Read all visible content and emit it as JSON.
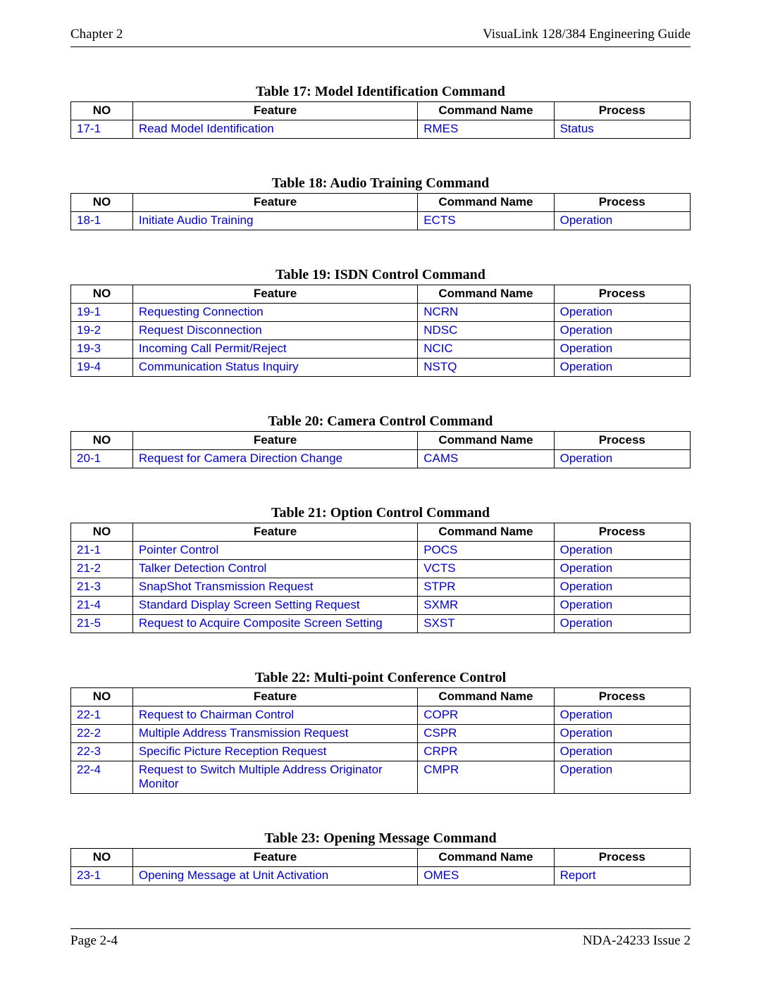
{
  "header": {
    "left": "Chapter 2",
    "right": "VisuaLink 128/384 Engineering Guide"
  },
  "footer": {
    "left": "Page 2-4",
    "right": "NDA-24233 Issue 2"
  },
  "column_headers": {
    "no": "NO",
    "feature": "Feature",
    "command": "Command Name",
    "process": "Process"
  },
  "link_color": "#0000cc",
  "text_color": "#000000",
  "border_color": "#000000",
  "background_color": "#ffffff",
  "tables": [
    {
      "caption": "Table 17:  Model Identification Command",
      "rows": [
        {
          "no": "17-1",
          "feature": "Read Model Identification",
          "command": "RMES",
          "process": "Status"
        }
      ]
    },
    {
      "caption": "Table 18:  Audio Training Command",
      "rows": [
        {
          "no": "18-1",
          "feature": "Initiate Audio Training",
          "command": "ECTS",
          "process": "Operation"
        }
      ]
    },
    {
      "caption": "Table 19:  ISDN Control Command",
      "rows": [
        {
          "no": "19-1",
          "feature": "Requesting Connection",
          "command": "NCRN",
          "process": "Operation"
        },
        {
          "no": "19-2",
          "feature": "Request Disconnection",
          "command": "NDSC",
          "process": "Operation"
        },
        {
          "no": "19-3",
          "feature": "Incoming Call Permit/Reject",
          "command": "NCIC",
          "process": "Operation"
        },
        {
          "no": "19-4",
          "feature": "Communication Status Inquiry",
          "command": "NSTQ",
          "process": "Operation"
        }
      ]
    },
    {
      "caption": "Table 20:  Camera Control Command",
      "rows": [
        {
          "no": "20-1",
          "feature": "Request for Camera Direction Change",
          "command": "CAMS",
          "process": "Operation"
        }
      ]
    },
    {
      "caption": "Table 21:  Option Control Command",
      "rows": [
        {
          "no": "21-1",
          "feature": "Pointer Control",
          "command": "POCS",
          "process": "Operation"
        },
        {
          "no": "21-2",
          "feature": "Talker Detection Control",
          "command": "VCTS",
          "process": "Operation"
        },
        {
          "no": "21-3",
          "feature": "SnapShot Transmission Request",
          "command": "STPR",
          "process": "Operation"
        },
        {
          "no": "21-4",
          "feature": "Standard Display Screen Setting Request",
          "command": "SXMR",
          "process": "Operation"
        },
        {
          "no": "21-5",
          "feature": "Request to Acquire Composite Screen Setting",
          "command": "SXST",
          "process": "Operation"
        }
      ]
    },
    {
      "caption": "Table 22:  Multi-point Conference Control",
      "rows": [
        {
          "no": "22-1",
          "feature": "Request to Chairman Control",
          "command": "COPR",
          "process": "Operation"
        },
        {
          "no": "22-2",
          "feature": "Multiple Address Transmission Request",
          "command": "CSPR",
          "process": "Operation"
        },
        {
          "no": "22-3",
          "feature": "Specific Picture Reception Request",
          "command": "CRPR",
          "process": "Operation"
        },
        {
          "no": "22-4",
          "feature": "Request to Switch Multiple Address Originator Monitor",
          "command": "CMPR",
          "process": "Operation"
        }
      ]
    },
    {
      "caption": "Table 23:  Opening Message Command",
      "rows": [
        {
          "no": "23-1",
          "feature": "Opening Message at Unit Activation",
          "command": "OMES",
          "process": "Report"
        }
      ]
    }
  ]
}
